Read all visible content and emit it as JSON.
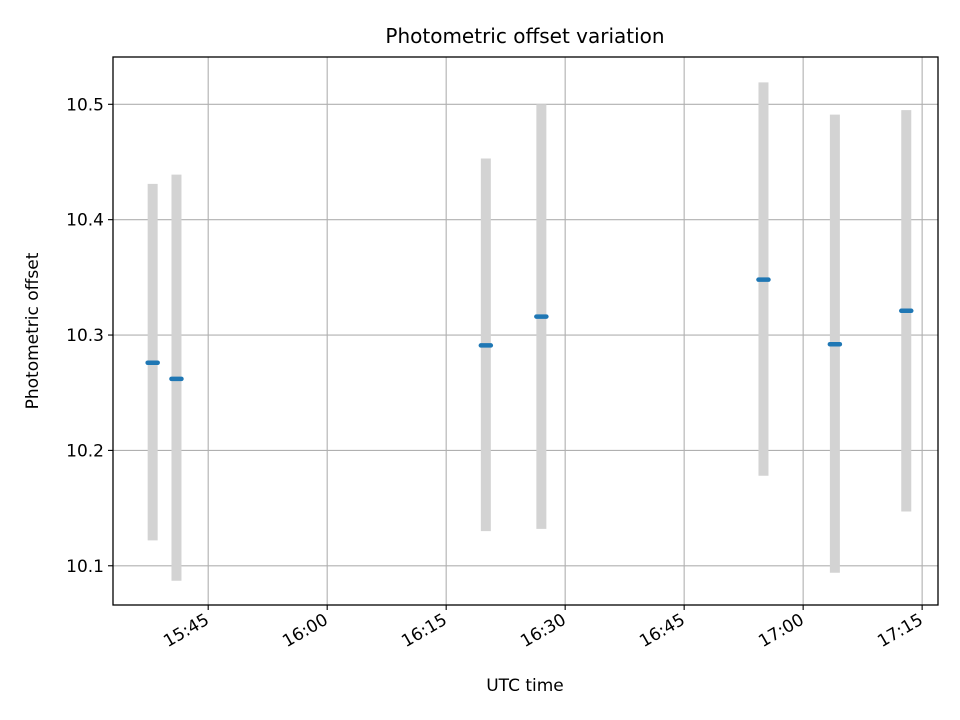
{
  "chart_data": {
    "type": "scatter",
    "title": "Photometric offset variation",
    "xlabel": "UTC time",
    "ylabel": "Photometric offset",
    "grid": true,
    "x_ticks": [
      "15:45",
      "16:00",
      "16:15",
      "16:30",
      "16:45",
      "17:00",
      "17:15"
    ],
    "y_ticks": [
      "10.1",
      "10.2",
      "10.3",
      "10.4",
      "10.5"
    ],
    "xlim": [
      "15:33",
      "17:17"
    ],
    "ylim": [
      10.066,
      10.541
    ],
    "series": [
      {
        "errorbar_color": "#d3d3d3",
        "marker_color": "#1f77b4",
        "points": [
          {
            "x": "15:38",
            "y": 10.276,
            "low": 10.122,
            "high": 10.431
          },
          {
            "x": "15:41",
            "y": 10.262,
            "low": 10.087,
            "high": 10.439
          },
          {
            "x": "16:20",
            "y": 10.291,
            "low": 10.13,
            "high": 10.453
          },
          {
            "x": "16:27",
            "y": 10.316,
            "low": 10.132,
            "high": 10.5
          },
          {
            "x": "16:55",
            "y": 10.348,
            "low": 10.178,
            "high": 10.519
          },
          {
            "x": "17:04",
            "y": 10.292,
            "low": 10.094,
            "high": 10.491
          },
          {
            "x": "17:13",
            "y": 10.321,
            "low": 10.147,
            "high": 10.495
          }
        ]
      }
    ]
  }
}
